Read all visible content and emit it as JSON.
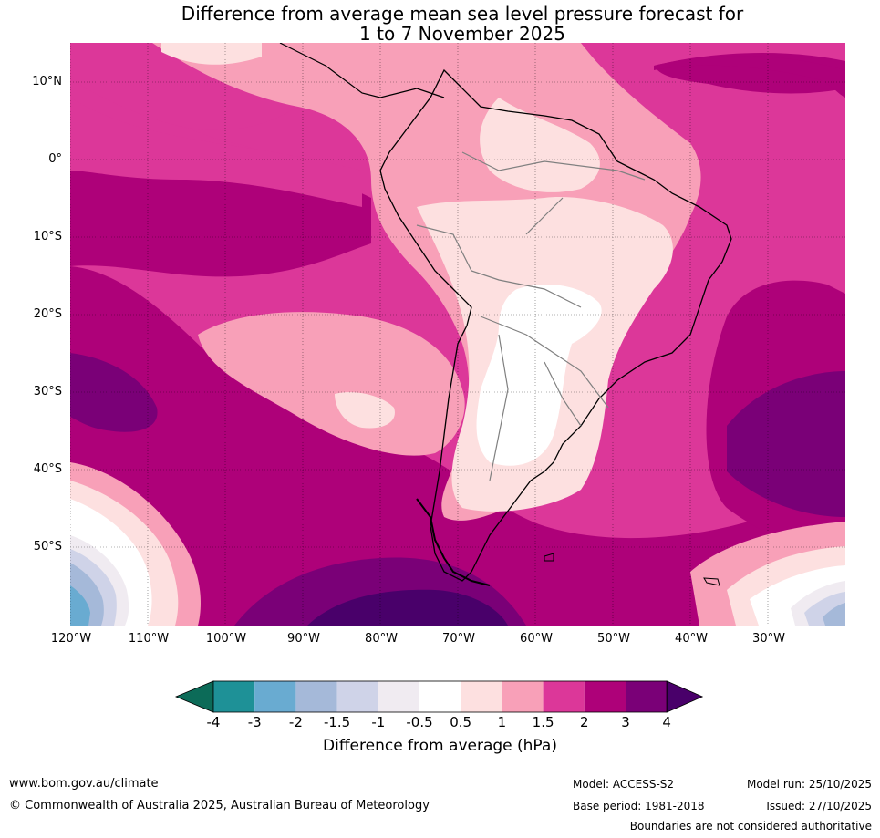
{
  "title": {
    "line1": "Difference from average mean sea level pressure forecast for",
    "line2": "1 to 7 November 2025"
  },
  "map": {
    "region": "South America",
    "lat_labels": [
      "10°N",
      "0°",
      "10°S",
      "20°S",
      "30°S",
      "40°S",
      "50°S"
    ],
    "lon_labels": [
      "120°W",
      "110°W",
      "100°W",
      "90°W",
      "80°W",
      "70°W",
      "60°W",
      "50°W",
      "40°W",
      "30°W"
    ]
  },
  "colorbar": {
    "ticks": [
      "-4",
      "-3",
      "-2",
      "-1.5",
      "-1",
      "-0.5",
      "0.5",
      "1",
      "1.5",
      "2",
      "3",
      "4"
    ],
    "colors": [
      "#0c6b58",
      "#1e9197",
      "#69abd1",
      "#a5b9d9",
      "#cfd3e8",
      "#f0ebf1",
      "#ffffff",
      "#fde0e0",
      "#f8a0b8",
      "#dc3799",
      "#ae0179",
      "#7a0077",
      "#49006a"
    ],
    "label": "Difference from average (hPa)"
  },
  "footer": {
    "website": "www.bom.gov.au/climate",
    "copyright": "© Commonwealth of Australia 2025, Australian Bureau of Meteorology",
    "model": "Model: ACCESS-S2",
    "base_period": "Base period: 1981-2018",
    "model_run": "Model run: 25/10/2025",
    "issued": "Issued: 27/10/2025",
    "disclaimer": "Boundaries are not considered authoritative"
  }
}
